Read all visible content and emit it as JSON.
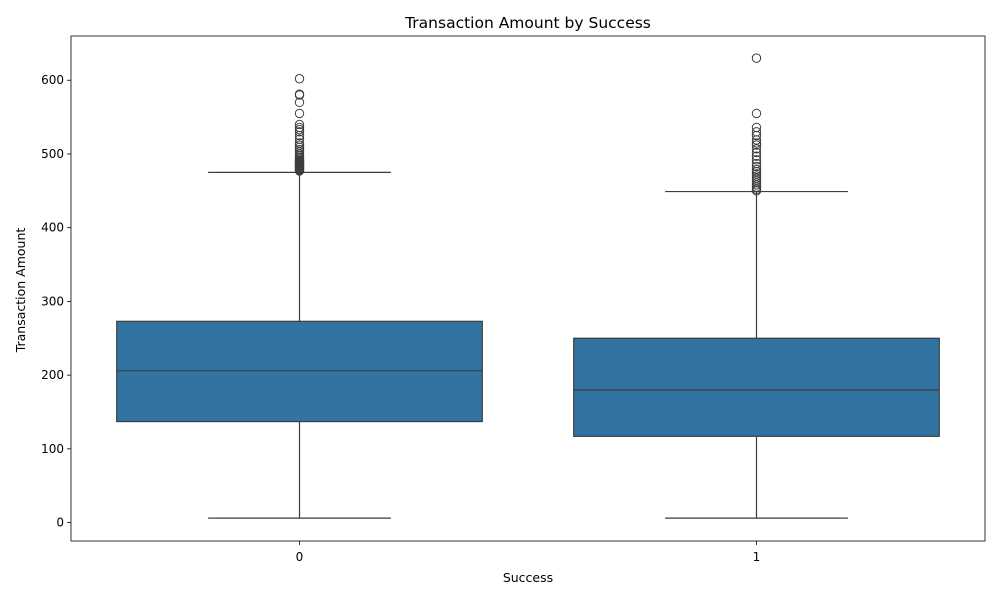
{
  "chart_data": {
    "type": "box",
    "title": "Transaction Amount by Success",
    "xlabel": "Success",
    "ylabel": "Transaction Amount",
    "ylim": [
      -25,
      660
    ],
    "yticks": [
      0,
      100,
      200,
      300,
      400,
      500,
      600
    ],
    "grid": false,
    "color": "#3274a1",
    "categories": [
      "0",
      "1"
    ],
    "boxes": [
      {
        "category": "0",
        "whisker_low": 6,
        "q1": 137,
        "median": 206,
        "q3": 273,
        "whisker_high": 475,
        "outliers": [
          477,
          478,
          479,
          480,
          481,
          482,
          483,
          484,
          485,
          486,
          487,
          488,
          489,
          490,
          491,
          492,
          494,
          496,
          498,
          500,
          503,
          506,
          509,
          512,
          515,
          520,
          525,
          530,
          533,
          536,
          540,
          555,
          570,
          580,
          581,
          602
        ]
      },
      {
        "category": "1",
        "whisker_low": 6,
        "q1": 117,
        "median": 180,
        "q3": 250,
        "whisker_high": 449,
        "outliers": [
          450,
          452,
          455,
          458,
          461,
          464,
          467,
          470,
          473,
          476,
          479,
          483,
          487,
          492,
          497,
          502,
          507,
          512,
          515,
          519,
          525,
          530,
          536,
          555,
          630
        ]
      }
    ]
  }
}
